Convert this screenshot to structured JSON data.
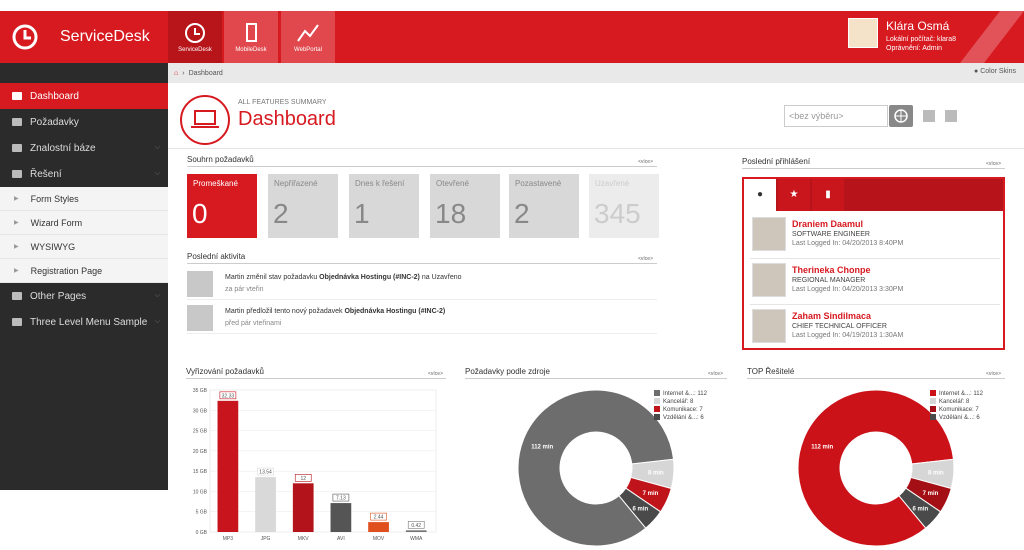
{
  "app": {
    "title": "ServiceDesk"
  },
  "header_modules": [
    {
      "label": "ServiceDesk",
      "icon": "clock-icon"
    },
    {
      "label": "MobileDesk",
      "icon": "mobile-icon"
    },
    {
      "label": "WebPortal",
      "icon": "chart-icon"
    }
  ],
  "user": {
    "name": "Klára Osmá",
    "line2": "Lokální počítač: klara8",
    "line3": "Oprávnění: Admin"
  },
  "sidebar": {
    "items": [
      {
        "label": "Dashboard",
        "active": true,
        "icon": "laptop-icon"
      },
      {
        "label": "Požadavky",
        "icon": "hand-icon"
      },
      {
        "label": "Znalostní báze",
        "icon": "list-icon"
      },
      {
        "label": "Řešení",
        "icon": "briefcase-icon"
      }
    ],
    "subitems": [
      "Form Styles",
      "Wizard Form",
      "WYSIWYG",
      "Registration Page"
    ],
    "items_bottom": [
      {
        "label": "Other Pages",
        "icon": "book-icon"
      },
      {
        "label": "Three Level Menu Sample",
        "icon": "list-icon"
      }
    ]
  },
  "breadcrumb": {
    "current": "Dashboard",
    "color_skins": "Color Skins"
  },
  "page": {
    "subtitle": "ALL FEATURES SUMMARY",
    "title": "Dashboard"
  },
  "search": {
    "placeholder": "<bez výběru>"
  },
  "more_label": "<více>",
  "summary": {
    "title": "Souhrn požadavků",
    "tiles": [
      {
        "label": "Promeškané",
        "value": "0"
      },
      {
        "label": "Nepřiřazené",
        "value": "2"
      },
      {
        "label": "Dnes k řešení",
        "value": "1"
      },
      {
        "label": "Otevřené",
        "value": "18"
      },
      {
        "label": "Pozastavené",
        "value": "2"
      },
      {
        "label": "Uzavřené",
        "value": "345"
      }
    ]
  },
  "activity": {
    "title": "Poslední aktivita",
    "items": [
      {
        "pre": "Martin změnil stav požadavku ",
        "bold": "Objednávka Hostingu (#INC-2)",
        "post": " na Uzavřeno",
        "time": "za pár vteřin"
      },
      {
        "pre": "Martin předložil tento nový požadavek ",
        "bold": "Objednávka Hostingu (#INC-2)",
        "post": "",
        "time": "před pár vteřinami"
      }
    ]
  },
  "logins": {
    "title": "Poslední přihlášení",
    "users": [
      {
        "name": "Draniem Daamul",
        "role": "SOFTWARE ENGINEER",
        "date": "Last Logged In: 04/20/2013 8:40PM"
      },
      {
        "name": "Therineka Chonpe",
        "role": "REGIONAL MANAGER",
        "date": "Last Logged In: 04/20/2013 3:30PM"
      },
      {
        "name": "Zaham Sindilmaca",
        "role": "CHIEF TECHNICAL OFFICER",
        "date": "Last Logged In: 04/19/2013 1:30AM"
      }
    ]
  },
  "chart_titles": [
    "Vyřizování požadavků",
    "Požadavky podle zdroje",
    "TOP Řešitelé"
  ],
  "chart_data": [
    {
      "type": "bar",
      "categories": [
        "MP3",
        "JPG",
        "MKV",
        "AVI",
        "MOV",
        "WMA"
      ],
      "values": [
        32.33,
        13.54,
        12,
        7.13,
        2.44,
        0.42
      ],
      "labels": [
        "32.33",
        "13.54",
        "12",
        "7.13",
        "2.44",
        "0.42"
      ],
      "yticks": [
        "0 GB",
        "5 GB",
        "10 GB",
        "15 GB",
        "20 GB",
        "25 GB",
        "30 GB",
        "35 GB"
      ],
      "ylim": [
        0,
        35
      ],
      "colors": [
        "#c8141c",
        "#d9d9d9",
        "#b3131a",
        "#555555",
        "#e0501e",
        "#777777"
      ]
    },
    {
      "type": "pie",
      "legend": [
        "Internet &...: 112",
        "Kancelář: 8",
        "Komunikace: 7",
        "Vzdělání &...: 6"
      ],
      "values": [
        112,
        8,
        7,
        6
      ],
      "slice_labels": [
        "112 min",
        "8 min",
        "7 min",
        "6 min"
      ],
      "colors": [
        "#6d6d6d",
        "#d6d6d6",
        "#c0141b",
        "#4a4a4a"
      ]
    },
    {
      "type": "pie",
      "legend": [
        "Internet &...: 112",
        "Kancelář: 8",
        "Komunikace: 7",
        "Vzdělání &...: 6"
      ],
      "values": [
        112,
        8,
        7,
        6
      ],
      "slice_labels": [
        "112 min",
        "8 min",
        "7 min",
        "6 min"
      ],
      "colors": [
        "#cc1219",
        "#d6d6d6",
        "#a40f15",
        "#4a4a4a"
      ]
    }
  ]
}
